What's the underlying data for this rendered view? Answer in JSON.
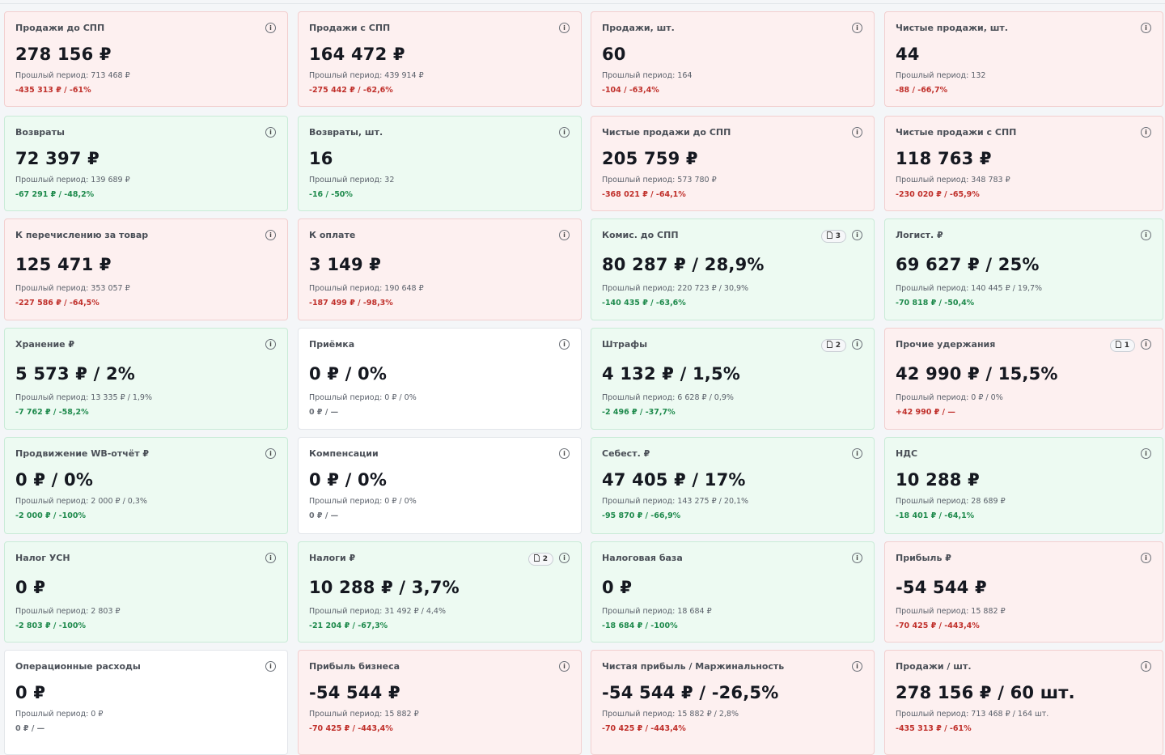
{
  "cards": [
    {
      "title": "Продажи до СПП",
      "value": "278 156 ₽",
      "prev": "Прошлый период: 713 468 ₽",
      "delta": "-435 313 ₽ / -61%",
      "tone": "red"
    },
    {
      "title": "Продажи с СПП",
      "value": "164 472 ₽",
      "prev": "Прошлый период: 439 914 ₽",
      "delta": "-275 442 ₽ / -62,6%",
      "tone": "red"
    },
    {
      "title": "Продажи, шт.",
      "value": "60",
      "prev": "Прошлый период: 164",
      "delta": "-104 / -63,4%",
      "tone": "red"
    },
    {
      "title": "Чистые продажи, шт.",
      "value": "44",
      "prev": "Прошлый период: 132",
      "delta": "-88 / -66,7%",
      "tone": "red"
    },
    {
      "title": "Возвраты",
      "value": "72 397 ₽",
      "prev": "Прошлый период: 139 689 ₽",
      "delta": "-67 291 ₽ / -48,2%",
      "tone": "green"
    },
    {
      "title": "Возвраты, шт.",
      "value": "16",
      "prev": "Прошлый период: 32",
      "delta": "-16 / -50%",
      "tone": "green"
    },
    {
      "title": "Чистые продажи до СПП",
      "value": "205 759 ₽",
      "prev": "Прошлый период: 573 780 ₽",
      "delta": "-368 021 ₽ / -64,1%",
      "tone": "red"
    },
    {
      "title": "Чистые продажи с СПП",
      "value": "118 763 ₽",
      "prev": "Прошлый период: 348 783 ₽",
      "delta": "-230 020 ₽ / -65,9%",
      "tone": "red"
    },
    {
      "title": "К перечислению за товар",
      "value": "125 471 ₽",
      "prev": "Прошлый период: 353 057 ₽",
      "delta": "-227 586 ₽ / -64,5%",
      "tone": "red"
    },
    {
      "title": "К оплате",
      "value": "3 149 ₽",
      "prev": "Прошлый период: 190 648 ₽",
      "delta": "-187 499 ₽ / -98,3%",
      "tone": "red"
    },
    {
      "title": "Комис. до СПП",
      "badge": 3,
      "value": "80 287 ₽ / 28,9%",
      "prev": "Прошлый период: 220 723 ₽ / 30,9%",
      "delta": "-140 435 ₽ / -63,6%",
      "tone": "green"
    },
    {
      "title": "Логист. ₽",
      "value": "69 627 ₽ / 25%",
      "prev": "Прошлый период: 140 445 ₽ / 19,7%",
      "delta": "-70 818 ₽ / -50,4%",
      "tone": "green"
    },
    {
      "title": "Хранение ₽",
      "value": "5 573 ₽ / 2%",
      "prev": "Прошлый период: 13 335 ₽ / 1,9%",
      "delta": "-7 762 ₽ / -58,2%",
      "tone": "green"
    },
    {
      "title": "Приёмка",
      "value": "0 ₽ / 0%",
      "prev": "Прошлый период: 0 ₽ / 0%",
      "delta": "0 ₽ / —",
      "tone": "neutral"
    },
    {
      "title": "Штрафы",
      "badge": 2,
      "value": "4 132 ₽ / 1,5%",
      "prev": "Прошлый период: 6 628 ₽ / 0,9%",
      "delta": "-2 496 ₽ / -37,7%",
      "tone": "green"
    },
    {
      "title": "Прочие удержания",
      "badge": 1,
      "value": "42 990 ₽ / 15,5%",
      "prev": "Прошлый период: 0 ₽ / 0%",
      "delta": "+42 990 ₽ / —",
      "tone": "red"
    },
    {
      "title": "Продвижение WB-отчёт ₽",
      "value": "0 ₽ / 0%",
      "prev": "Прошлый период: 2 000 ₽ / 0,3%",
      "delta": "-2 000 ₽ / -100%",
      "tone": "green"
    },
    {
      "title": "Компенсации",
      "value": "0 ₽ / 0%",
      "prev": "Прошлый период: 0 ₽ / 0%",
      "delta": "0 ₽ / —",
      "tone": "neutral"
    },
    {
      "title": "Себест. ₽",
      "value": "47 405 ₽ / 17%",
      "prev": "Прошлый период: 143 275 ₽ / 20,1%",
      "delta": "-95 870 ₽ / -66,9%",
      "tone": "green"
    },
    {
      "title": "НДС",
      "value": "10 288 ₽",
      "prev": "Прошлый период: 28 689 ₽",
      "delta": "-18 401 ₽ / -64,1%",
      "tone": "green"
    },
    {
      "title": "Налог УСН",
      "value": "0 ₽",
      "prev": "Прошлый период: 2 803 ₽",
      "delta": "-2 803 ₽ / -100%",
      "tone": "green"
    },
    {
      "title": "Налоги ₽",
      "badge": 2,
      "value": "10 288 ₽ / 3,7%",
      "prev": "Прошлый период: 31 492 ₽ / 4,4%",
      "delta": "-21 204 ₽ / -67,3%",
      "tone": "green"
    },
    {
      "title": "Налоговая база",
      "value": "0 ₽",
      "prev": "Прошлый период: 18 684 ₽",
      "delta": "-18 684 ₽ / -100%",
      "tone": "green"
    },
    {
      "title": "Прибыль ₽",
      "value": "-54 544 ₽",
      "prev": "Прошлый период: 15 882 ₽",
      "delta": "-70 425 ₽ / -443,4%",
      "tone": "red"
    },
    {
      "title": "Операционные расходы",
      "value": "0 ₽",
      "prev": "Прошлый период: 0 ₽",
      "delta": "0 ₽ / —",
      "tone": "neutral"
    },
    {
      "title": "Прибыль бизнеса",
      "value": "-54 544 ₽",
      "prev": "Прошлый период: 15 882 ₽",
      "delta": "-70 425 ₽ / -443,4%",
      "tone": "red"
    },
    {
      "title": "Чистая прибыль / Маржинальность",
      "value": "-54 544 ₽ / -26,5%",
      "prev": "Прошлый период: 15 882 ₽ / 2,8%",
      "delta": "-70 425 ₽ / -443,4%",
      "tone": "red"
    },
    {
      "title": "Продажи / шт.",
      "value": "278 156 ₽ / 60 шт.",
      "prev": "Прошлый период: 713 468 ₽ / 164 шт.",
      "delta": "-435 313 ₽ / -61%",
      "tone": "red"
    }
  ]
}
